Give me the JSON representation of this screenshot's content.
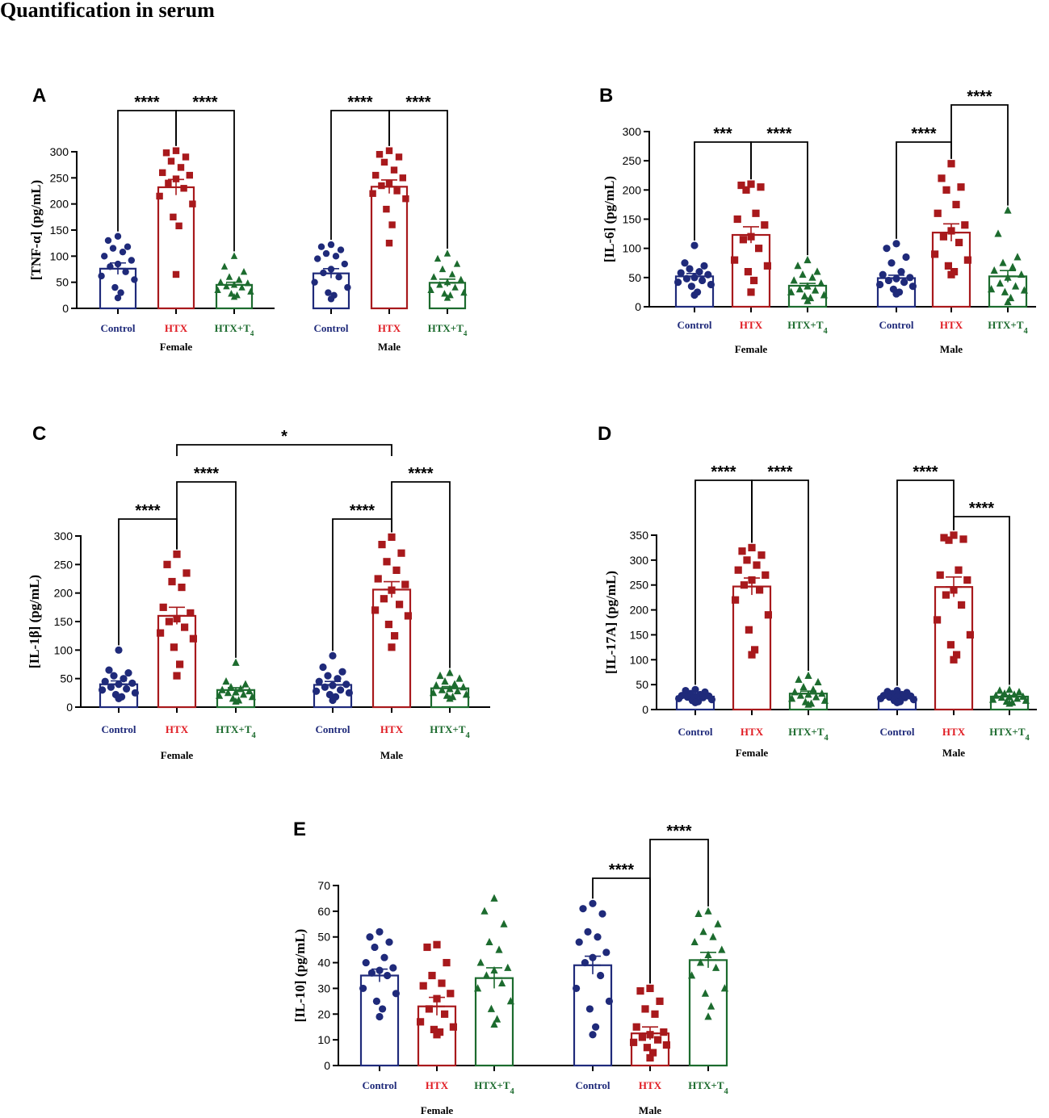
{
  "title": "Quantification in serum",
  "colors": {
    "control": "#1f2a7a",
    "htx": "#a8191c",
    "t4": "#1c6b2e",
    "htx_label": "#e01b22",
    "axis": "#000000"
  },
  "chart_data": [
    {
      "panel": "A",
      "type": "bar",
      "ylabel": "[TNF-α] (pg/mL)",
      "ylim": [
        0,
        300
      ],
      "yticks": [
        0,
        50,
        100,
        150,
        200,
        250,
        300
      ],
      "groups": [
        "Female",
        "Male"
      ],
      "categories": [
        "Control",
        "HTX",
        "HTX+T4"
      ],
      "series": [
        {
          "group": "Female",
          "values": [
            76,
            232,
            45
          ],
          "sem": [
            11,
            15,
            5
          ],
          "points": [
            [
              138,
              130,
              118,
              115,
              108,
              100,
              92,
              85,
              80,
              70,
              62,
              55,
              40,
              30,
              20
            ],
            [
              302,
              298,
              290,
              282,
              270,
              260,
              255,
              248,
              240,
              230,
              215,
              200,
              175,
              158,
              65
            ],
            [
              100,
              80,
              70,
              60,
              55,
              50,
              48,
              45,
              42,
              40,
              35,
              32,
              28,
              25,
              22
            ]
          ]
        },
        {
          "group": "Male",
          "values": [
            67,
            233,
            49
          ],
          "sem": [
            9,
            13,
            7
          ],
          "points": [
            [
              122,
              118,
              112,
              105,
              100,
              95,
              85,
              75,
              68,
              60,
              50,
              40,
              30,
              25,
              18
            ],
            [
              302,
              295,
              290,
              280,
              265,
              255,
              250,
              240,
              235,
              225,
              220,
              210,
              190,
              160,
              125
            ],
            [
              105,
              95,
              85,
              75,
              65,
              60,
              55,
              50,
              45,
              40,
              35,
              30,
              28,
              25,
              20
            ]
          ]
        }
      ],
      "comparisons": [
        {
          "group": "Female",
          "from": "Control",
          "to": "HTX",
          "label": "****"
        },
        {
          "group": "Female",
          "from": "HTX",
          "to": "HTX+T4",
          "label": "****"
        },
        {
          "group": "Male",
          "from": "Control",
          "to": "HTX",
          "label": "****"
        },
        {
          "group": "Male",
          "from": "HTX",
          "to": "HTX+T4",
          "label": "****"
        }
      ]
    },
    {
      "panel": "B",
      "type": "bar",
      "ylabel": "[IL-6] (pg/mL)",
      "ylim": [
        0,
        300
      ],
      "yticks": [
        0,
        50,
        100,
        150,
        200,
        250,
        300
      ],
      "groups": [
        "Female",
        "Male"
      ],
      "categories": [
        "Control",
        "HTX",
        "HTX+T4"
      ],
      "series": [
        {
          "group": "Female",
          "values": [
            52,
            123,
            36
          ],
          "sem": [
            5,
            14,
            4
          ],
          "points": [
            [
              105,
              75,
              70,
              65,
              60,
              58,
              55,
              50,
              48,
              45,
              42,
              38,
              35,
              25,
              20
            ],
            [
              210,
              208,
              205,
              200,
              160,
              150,
              140,
              120,
              115,
              100,
              80,
              70,
              60,
              45,
              25
            ],
            [
              80,
              70,
              60,
              55,
              50,
              45,
              40,
              35,
              30,
              28,
              25,
              20,
              18,
              15,
              10
            ]
          ]
        },
        {
          "group": "Male",
          "values": [
            49,
            127,
            52
          ],
          "sem": [
            5,
            15,
            10
          ],
          "points": [
            [
              108,
              100,
              85,
              75,
              60,
              55,
              50,
              48,
              45,
              42,
              38,
              35,
              30,
              25,
              22
            ],
            [
              245,
              220,
              205,
              200,
              175,
              160,
              140,
              130,
              120,
              110,
              90,
              80,
              70,
              60,
              55
            ],
            [
              165,
              125,
              85,
              75,
              68,
              62,
              55,
              50,
              40,
              35,
              30,
              28,
              25,
              15,
              8
            ]
          ]
        }
      ],
      "comparisons": [
        {
          "group": "Female",
          "from": "Control",
          "to": "HTX",
          "label": "***"
        },
        {
          "group": "Female",
          "from": "HTX",
          "to": "HTX+T4",
          "label": "****"
        },
        {
          "group": "Male",
          "from": "Control",
          "to": "HTX",
          "label": "****"
        },
        {
          "group": "Male",
          "from": "HTX",
          "to": "HTX+T4",
          "label": "****"
        }
      ]
    },
    {
      "panel": "C",
      "type": "bar",
      "ylabel": "[IL-1β] (pg/mL)",
      "ylim": [
        0,
        300
      ],
      "yticks": [
        0,
        50,
        100,
        150,
        200,
        250,
        300
      ],
      "groups": [
        "Female",
        "Male"
      ],
      "categories": [
        "Control",
        "HTX",
        "HTX+T4"
      ],
      "series": [
        {
          "group": "Female",
          "values": [
            40,
            160,
            30
          ],
          "sem": [
            6,
            15,
            4
          ],
          "points": [
            [
              100,
              65,
              60,
              55,
              50,
              45,
              42,
              40,
              35,
              32,
              30,
              25,
              22,
              18,
              15
            ],
            [
              268,
              250,
              235,
              220,
              210,
              175,
              165,
              155,
              150,
              140,
              130,
              120,
              105,
              75,
              55
            ],
            [
              78,
              45,
              40,
              35,
              32,
              30,
              28,
              26,
              25,
              22,
              20,
              18,
              15,
              12,
              10
            ]
          ]
        },
        {
          "group": "Male",
          "values": [
            39,
            206,
            33
          ],
          "sem": [
            6,
            14,
            3
          ],
          "points": [
            [
              90,
              70,
              62,
              55,
              50,
              45,
              40,
              38,
              35,
              30,
              28,
              25,
              22,
              18,
              12
            ],
            [
              298,
              285,
              270,
              255,
              240,
              225,
              215,
              205,
              190,
              180,
              170,
              160,
              145,
              125,
              105
            ],
            [
              60,
              55,
              50,
              45,
              40,
              38,
              35,
              32,
              30,
              28,
              25,
              22,
              20,
              18,
              15
            ]
          ]
        }
      ],
      "comparisons": [
        {
          "group": "Female",
          "from": "Control",
          "to": "HTX",
          "label": "****"
        },
        {
          "group": "Female",
          "from": "HTX",
          "to": "HTX+T4",
          "label": "****"
        },
        {
          "group": "Male",
          "from": "Control",
          "to": "HTX",
          "label": "****"
        },
        {
          "group": "Male",
          "from": "HTX",
          "to": "HTX+T4",
          "label": "****"
        },
        {
          "across": true,
          "from_group": "Female",
          "to_group": "Male",
          "category": "HTX",
          "label": "*"
        }
      ]
    },
    {
      "panel": "D",
      "type": "bar",
      "ylabel": "[IL-17A] (pg/mL)",
      "ylim": [
        0,
        350
      ],
      "yticks": [
        0,
        50,
        100,
        150,
        200,
        250,
        300,
        350
      ],
      "groups": [
        "Female",
        "Male"
      ],
      "categories": [
        "Control",
        "HTX",
        "HTX+T4"
      ],
      "series": [
        {
          "group": "Female",
          "values": [
            26,
            247,
            32
          ],
          "sem": [
            3,
            17,
            5
          ],
          "points": [
            [
              40,
              38,
              35,
              32,
              30,
              28,
              27,
              26,
              25,
              24,
              22,
              20,
              18,
              16,
              14
            ],
            [
              325,
              318,
              310,
              300,
              290,
              280,
              270,
              260,
              250,
              240,
              220,
              190,
              160,
              120,
              110
            ],
            [
              68,
              60,
              55,
              45,
              40,
              35,
              32,
              30,
              28,
              25,
              22,
              18,
              15,
              12,
              10
            ]
          ]
        },
        {
          "group": "Male",
          "values": [
            25,
            246,
            26
          ],
          "sem": [
            2,
            20,
            2
          ],
          "points": [
            [
              38,
              36,
              34,
              32,
              30,
              28,
              27,
              26,
              25,
              24,
              22,
              20,
              18,
              16,
              14
            ],
            [
              350,
              345,
              342,
              340,
              280,
              270,
              260,
              240,
              230,
              210,
              180,
              150,
              130,
              110,
              100
            ],
            [
              40,
              38,
              35,
              32,
              30,
              28,
              26,
              25,
              24,
              22,
              20,
              18,
              16,
              14,
              12
            ]
          ]
        }
      ],
      "comparisons": [
        {
          "group": "Female",
          "from": "Control",
          "to": "HTX",
          "label": "****"
        },
        {
          "group": "Female",
          "from": "HTX",
          "to": "HTX+T4",
          "label": "****"
        },
        {
          "group": "Male",
          "from": "Control",
          "to": "HTX",
          "label": "****"
        },
        {
          "group": "Male",
          "from": "HTX",
          "to": "HTX+T4",
          "label": "****"
        }
      ]
    },
    {
      "panel": "E",
      "type": "bar",
      "ylabel": "[IL-10] (pg/mL)",
      "ylim": [
        0,
        70
      ],
      "yticks": [
        0,
        10,
        20,
        30,
        40,
        50,
        60,
        70
      ],
      "groups": [
        "Female",
        "Male"
      ],
      "categories": [
        "Control",
        "HTX",
        "HTX+T4"
      ],
      "series": [
        {
          "group": "Female",
          "values": [
            35,
            23,
            34
          ],
          "sem": [
            2.5,
            3.5,
            4
          ],
          "points": [
            [
              52,
              50,
              48,
              46,
              42,
              40,
              38,
              37,
              36,
              35,
              30,
              28,
              25,
              22,
              19
            ],
            [
              47,
              46,
              40,
              35,
              32,
              31,
              28,
              26,
              22,
              20,
              17,
              15,
              14,
              13,
              12
            ],
            [
              65,
              60,
              55,
              48,
              45,
              40,
              38,
              37,
              35,
              32,
              30,
              25,
              22,
              18,
              16
            ]
          ]
        },
        {
          "group": "Male",
          "values": [
            39,
            12.5,
            41
          ],
          "sem": [
            3.5,
            2.5,
            3
          ],
          "points": [
            [
              63,
              61,
              59,
              52,
              50,
              48,
              44,
              42,
              40,
              35,
              30,
              25,
              22,
              15,
              12
            ],
            [
              30,
              29,
              25,
              22,
              20,
              15,
              13,
              12,
              11,
              10,
              9,
              8,
              7,
              5,
              3
            ],
            [
              60,
              59,
              55,
              52,
              50,
              48,
              45,
              43,
              40,
              38,
              35,
              30,
              28,
              23,
              19
            ]
          ]
        }
      ],
      "comparisons": [
        {
          "group": "Male",
          "from": "Control",
          "to": "HTX",
          "label": "****"
        },
        {
          "group": "Male",
          "from": "HTX",
          "to": "HTX+T4",
          "label": "****"
        }
      ]
    }
  ]
}
